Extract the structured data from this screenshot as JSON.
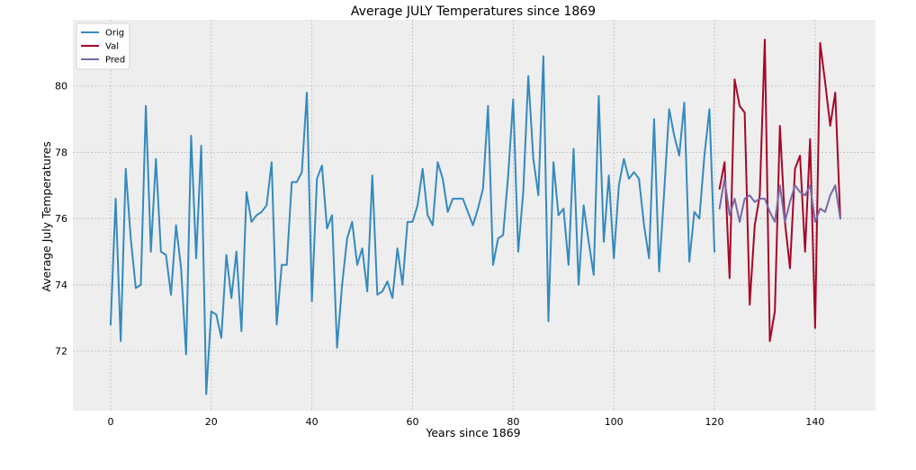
{
  "chart_data": {
    "type": "line",
    "title": "Average JULY Temperatures since 1869",
    "xlabel": "Years since 1869",
    "ylabel": "Average July Temperatures",
    "xlim": [
      -7.5,
      152
    ],
    "ylim": [
      70.2,
      82.0
    ],
    "x_ticks": [
      0,
      20,
      40,
      60,
      80,
      100,
      120,
      140
    ],
    "y_ticks": [
      72,
      74,
      76,
      78,
      80
    ],
    "grid": true,
    "legend_position": "top-left",
    "series": [
      {
        "name": "Orig",
        "color": "#348ABD",
        "x_start": 0,
        "values": [
          72.8,
          76.6,
          72.3,
          77.5,
          75.4,
          73.9,
          74.0,
          79.4,
          75.0,
          77.8,
          75.0,
          74.9,
          73.7,
          75.8,
          74.5,
          71.9,
          78.5,
          74.8,
          78.2,
          70.7,
          73.2,
          73.1,
          72.4,
          74.9,
          73.6,
          75.0,
          72.6,
          76.8,
          75.9,
          76.1,
          76.2,
          76.4,
          77.7,
          72.8,
          74.6,
          74.6,
          77.1,
          77.1,
          77.4,
          79.8,
          73.5,
          77.2,
          77.6,
          75.7,
          76.1,
          72.1,
          74.0,
          75.4,
          75.9,
          74.6,
          75.1,
          73.8,
          77.3,
          73.7,
          73.8,
          74.1,
          73.6,
          75.1,
          74.0,
          75.9,
          75.9,
          76.4,
          77.5,
          76.1,
          75.8,
          77.7,
          77.2,
          76.2,
          76.6,
          76.6,
          76.6,
          76.2,
          75.8,
          76.3,
          76.9,
          79.4,
          74.6,
          75.4,
          75.5,
          77.3,
          79.6,
          75.0,
          76.8,
          80.3,
          77.8,
          76.7,
          80.9,
          72.9,
          77.7,
          76.1,
          76.3,
          74.6,
          78.1,
          74.0,
          76.4,
          75.3,
          74.3,
          79.7,
          75.3,
          77.3,
          74.8,
          77.0,
          77.8,
          77.2,
          77.4,
          77.2,
          75.8,
          74.8,
          79.0,
          74.4,
          76.8,
          79.3,
          78.5,
          77.9,
          79.5,
          74.7,
          76.2,
          76.0,
          77.9,
          79.3,
          75.0
        ]
      },
      {
        "name": "Val",
        "color": "#A60628",
        "x_start": 121,
        "values": [
          76.9,
          77.7,
          74.2,
          80.2,
          79.4,
          79.2,
          73.4,
          75.8,
          76.7,
          81.4,
          72.3,
          73.2,
          78.8,
          75.9,
          74.5,
          77.5,
          77.9,
          75.0,
          78.4,
          72.7,
          81.3,
          80.1,
          78.8,
          79.8,
          76.0
        ]
      },
      {
        "name": "Pred",
        "color": "#7A68A6",
        "x_start": 121,
        "values": [
          76.3,
          77.2,
          76.1,
          76.6,
          75.9,
          76.6,
          76.7,
          76.5,
          76.6,
          76.6,
          76.2,
          75.9,
          77.0,
          75.9,
          76.5,
          77.0,
          76.8,
          76.7,
          77.0,
          75.9,
          76.3,
          76.2,
          76.7,
          77.0,
          76.0
        ]
      }
    ]
  },
  "colors": {
    "plot_background": "#EEEEEE",
    "grid": "#BCBCBC"
  }
}
